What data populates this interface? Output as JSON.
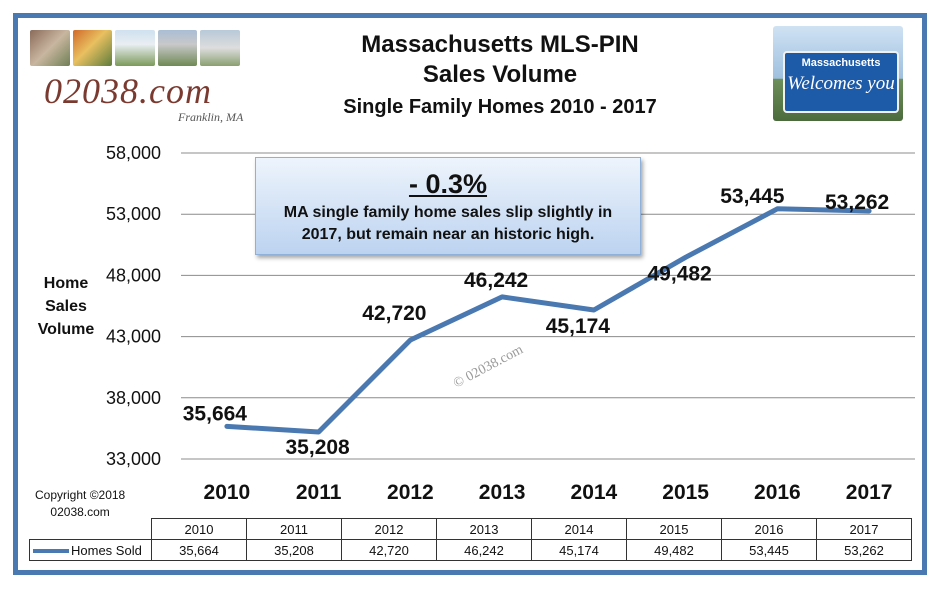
{
  "header": {
    "title_line1": "Massachusetts  MLS-PIN",
    "title_line2": "Sales Volume",
    "title_line3": "Single Family Homes 2010 - 2017"
  },
  "logo": {
    "text": "02038.com",
    "subtext": "Franklin, MA"
  },
  "sign": {
    "line1": "Massachusetts",
    "line2": "Welcomes you"
  },
  "callout": {
    "title": "- 0.3%",
    "text_line1": "MA single family home sales slip slightly in",
    "text_line2": "2017, but remain near an historic high."
  },
  "axis": {
    "ylabel_line1": "Home",
    "ylabel_line2": "Sales",
    "ylabel_line3": "Volume"
  },
  "watermark": "© 02038.com",
  "copyright": {
    "line1": "Copyright ©2018",
    "line2": "02038.com"
  },
  "chart_data": {
    "type": "line",
    "categories": [
      "2010",
      "2011",
      "2012",
      "2013",
      "2014",
      "2015",
      "2016",
      "2017"
    ],
    "series": [
      {
        "name": "Homes Sold",
        "values": [
          35664,
          35208,
          42720,
          46242,
          45174,
          49482,
          53445,
          53262
        ],
        "labels": [
          "35,664",
          "35,208",
          "42,720",
          "46,242",
          "45,174",
          "49,482",
          "53,445",
          "53,262"
        ],
        "color": "#4a78b0"
      }
    ],
    "ylim": [
      33000,
      58000
    ],
    "yticks": [
      33000,
      38000,
      43000,
      48000,
      53000,
      58000
    ],
    "ytick_labels": [
      "33,000",
      "38,000",
      "43,000",
      "48,000",
      "53,000",
      "58,000"
    ],
    "grid": true,
    "data_table": true
  }
}
